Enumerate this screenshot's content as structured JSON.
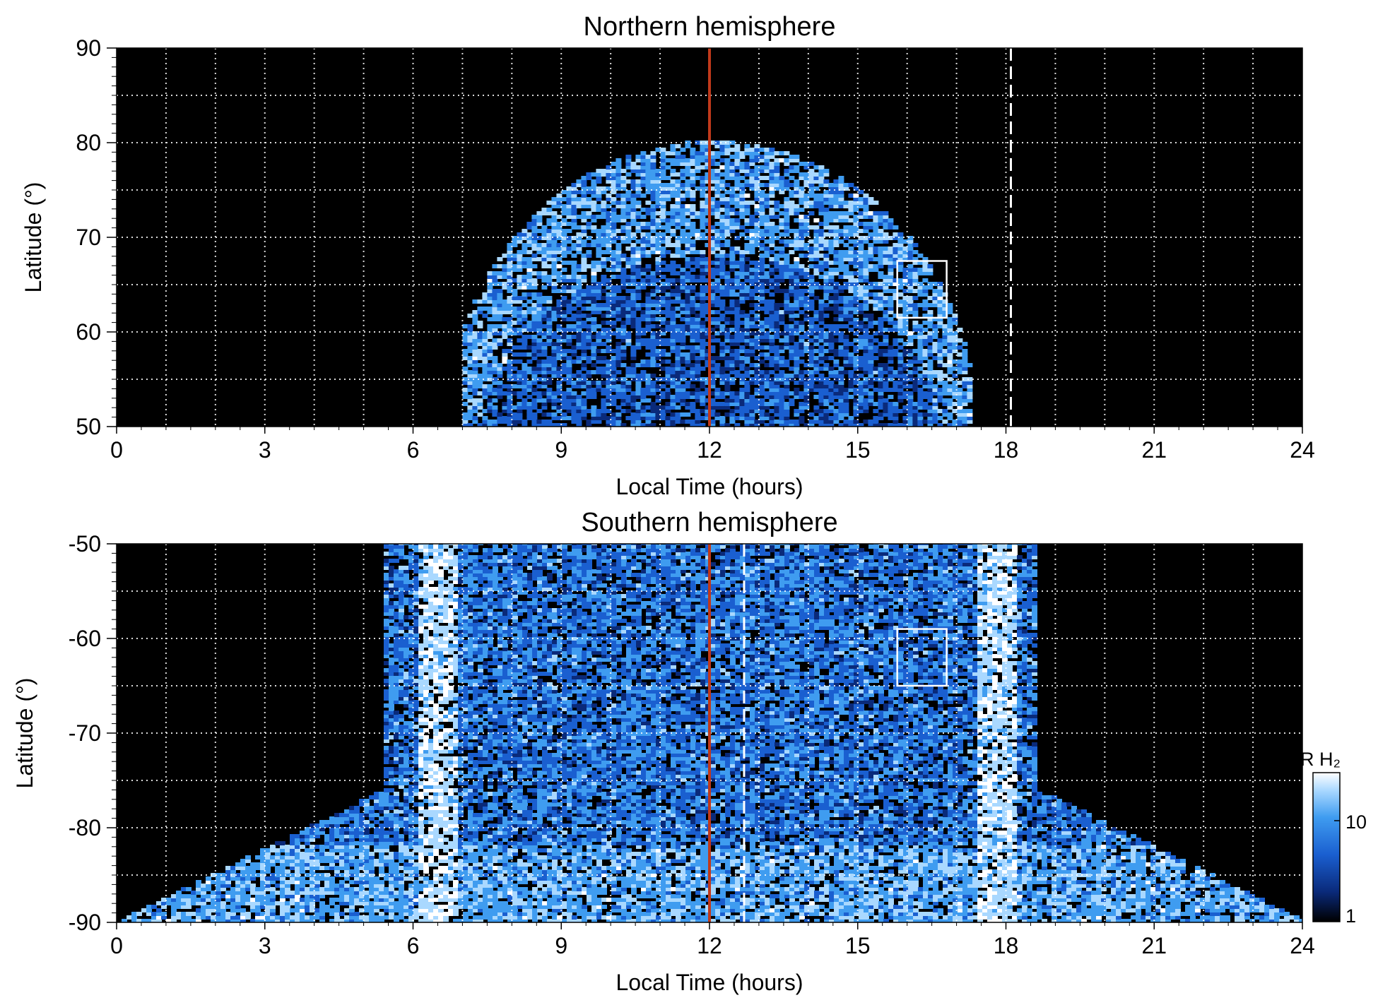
{
  "chart_data": [
    {
      "type": "heatmap",
      "title": "Northern hemisphere",
      "xlabel": "Local Time (hours)",
      "ylabel": "Latitude (°)",
      "xlim": [
        0,
        24
      ],
      "ylim": [
        50,
        90
      ],
      "x_ticks": [
        0,
        3,
        6,
        9,
        12,
        15,
        18,
        21,
        24
      ],
      "y_ticks": [
        50,
        60,
        70,
        80,
        90
      ],
      "grid": true,
      "grid_x_step": 1,
      "grid_y_step": 5,
      "emission_region": {
        "description_lt_span": [
          7.0,
          17.3
        ],
        "apex_lat": 80,
        "base_lat": 50,
        "inner_dark_apex_lat": 68
      },
      "reference_lines": [
        {
          "x": 12,
          "style": "solid",
          "color": "#c0391b"
        },
        {
          "x": 18.1,
          "style": "dashed",
          "color": "#ffffff"
        }
      ],
      "box": {
        "x": [
          15.8,
          16.8
        ],
        "y": [
          61.5,
          67.5
        ]
      }
    },
    {
      "type": "heatmap",
      "title": "Southern hemisphere",
      "xlabel": "Local Time (hours)",
      "ylabel": "Latitude (°)",
      "xlim": [
        0,
        24
      ],
      "ylim": [
        -90,
        -50
      ],
      "x_ticks": [
        0,
        3,
        6,
        9,
        12,
        15,
        18,
        21,
        24
      ],
      "y_ticks": [
        -90,
        -80,
        -70,
        -60,
        -50
      ],
      "grid": true,
      "grid_x_step": 1,
      "grid_y_step": 5,
      "reference_lines": [
        {
          "x": 12,
          "style": "solid",
          "color": "#c0391b"
        },
        {
          "x": 12.7,
          "style": "dashed",
          "color": "#ffffff"
        }
      ],
      "box": {
        "x": [
          15.8,
          16.8
        ],
        "y": [
          -65,
          -59
        ]
      }
    }
  ],
  "colorbar": {
    "label": "kR H₂",
    "ticks": [
      "1",
      "10"
    ],
    "scale": "log",
    "range": [
      1,
      30
    ],
    "colors": [
      "#000000",
      "#0a2a7a",
      "#1a5fd0",
      "#3f9cf0",
      "#a9d8ff",
      "#ffffff"
    ]
  }
}
